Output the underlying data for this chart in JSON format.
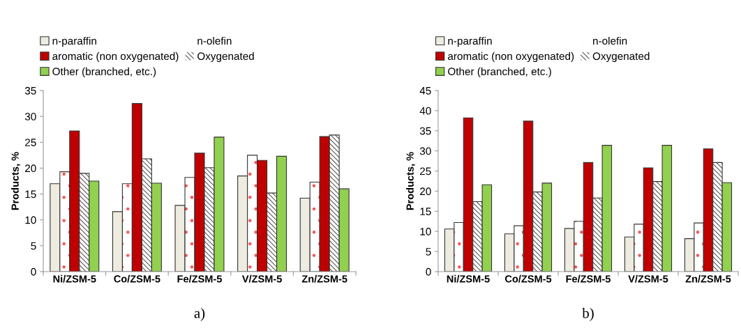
{
  "chart_data": [
    {
      "type": "bar",
      "ylabel": "Products, %",
      "categories": [
        "Ni/ZSM-5",
        "Co/ZSM-5",
        "Fe/ZSM-5",
        "V/ZSM-5",
        "Zn/ZSM-5"
      ],
      "ylim": [
        0,
        35
      ],
      "yticks": [
        0,
        5,
        10,
        15,
        20,
        25,
        30,
        35
      ],
      "legend": "top",
      "annotations": [
        "a)"
      ],
      "series": [
        {
          "name": "n-paraffin",
          "color": "#eeebe0",
          "values": [
            17.0,
            11.6,
            12.8,
            18.5,
            14.2
          ]
        },
        {
          "name": "n-olefin",
          "color": "#ffffff",
          "values": [
            19.3,
            17.0,
            18.2,
            22.5,
            17.3
          ]
        },
        {
          "name": "aromatic (non oxygenated)",
          "color": "#c00000",
          "values": [
            27.2,
            32.5,
            22.9,
            21.5,
            26.1
          ]
        },
        {
          "name": "Oxygenated",
          "color": "#ffffff",
          "values": [
            19.0,
            21.8,
            20.1,
            15.2,
            26.4
          ]
        },
        {
          "name": "Other (branched, etc.)",
          "color": "#92d050",
          "values": [
            17.5,
            17.1,
            26.0,
            22.3,
            16.0
          ]
        }
      ]
    },
    {
      "type": "bar",
      "ylabel": "Products, %",
      "categories": [
        "Ni/ZSM-5",
        "Co/ZSM-5",
        "Fe/ZSM-5",
        "V/ZSM-5",
        "Zn/ZSM-5"
      ],
      "ylim": [
        0,
        45
      ],
      "yticks": [
        0,
        5,
        10,
        15,
        20,
        25,
        30,
        35,
        40,
        45
      ],
      "legend": "top",
      "annotations": [
        "b)"
      ],
      "series": [
        {
          "name": "n-paraffin",
          "color": "#eeebe0",
          "values": [
            10.6,
            9.4,
            10.7,
            8.6,
            8.2
          ]
        },
        {
          "name": "n-olefin",
          "color": "#ffffff",
          "values": [
            12.2,
            11.4,
            12.5,
            11.8,
            12.1
          ]
        },
        {
          "name": "aromatic (non oxygenated)",
          "color": "#c00000",
          "values": [
            38.2,
            37.4,
            27.1,
            25.8,
            30.5
          ]
        },
        {
          "name": "Oxygenated",
          "color": "#ffffff",
          "values": [
            17.4,
            19.8,
            18.3,
            22.4,
            27.1
          ]
        },
        {
          "name": "Other (branched, etc.)",
          "color": "#92d050",
          "values": [
            21.6,
            22.0,
            31.4,
            31.4,
            22.1
          ]
        }
      ]
    }
  ]
}
